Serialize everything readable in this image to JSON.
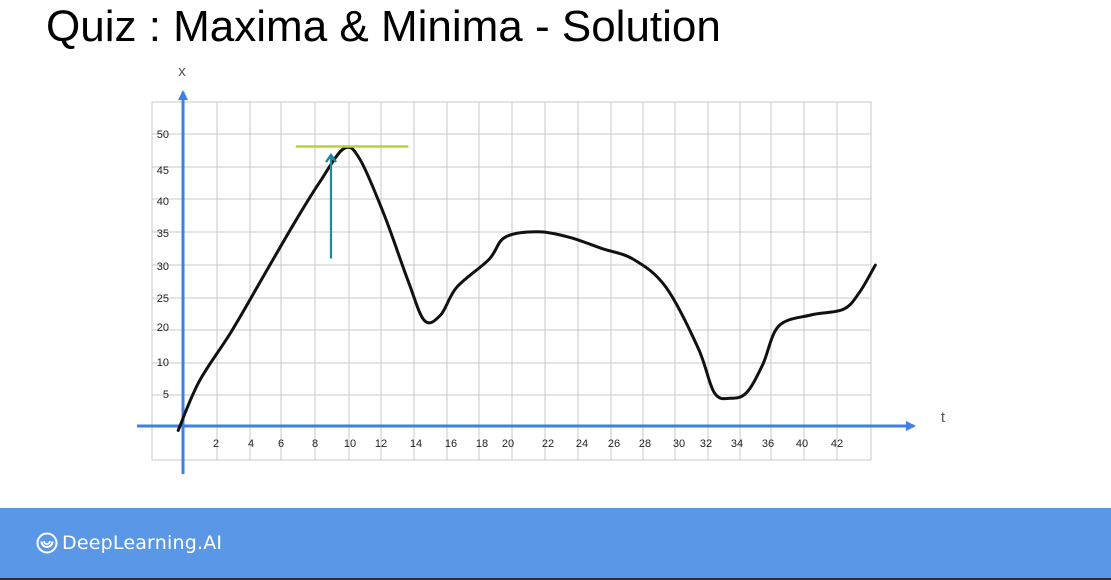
{
  "slide": {
    "title": "Quiz : Maxima & Minima - Solution"
  },
  "footer": {
    "brand": "DeepLearning.AI",
    "background": "#5a97e6"
  },
  "colors": {
    "axis": "#3f7fe6",
    "curve": "#111111",
    "grid": "#c8c8c8",
    "max_line": "#b6d334",
    "arrow": "#1b8a99"
  },
  "chart_data": {
    "type": "line",
    "xlabel": "t",
    "ylabel": "x",
    "x_ticks": [
      "2",
      "4",
      "6",
      "8",
      "10",
      "12",
      "14",
      "16",
      "18",
      "20",
      "22",
      "24",
      "26",
      "28",
      "30",
      "32",
      "34",
      "36",
      "40",
      "42"
    ],
    "y_ticks": [
      "5",
      "10",
      "20",
      "25",
      "30",
      "35",
      "40",
      "45",
      "50"
    ],
    "grid": true,
    "series": [
      {
        "points": [
          [
            -0.3,
            -0.8
          ],
          [
            1,
            8
          ],
          [
            3,
            17
          ],
          [
            5,
            27
          ],
          [
            7,
            37
          ],
          [
            8.5,
            44
          ],
          [
            10,
            50
          ],
          [
            11,
            48
          ],
          [
            12.5,
            38
          ],
          [
            14,
            26
          ],
          [
            15,
            19
          ],
          [
            16,
            20
          ],
          [
            17,
            25
          ],
          [
            19,
            30
          ],
          [
            20,
            34
          ],
          [
            22,
            35
          ],
          [
            24,
            34
          ],
          [
            26,
            32
          ],
          [
            28,
            30
          ],
          [
            30,
            25
          ],
          [
            32,
            14
          ],
          [
            33,
            6
          ],
          [
            34,
            5
          ],
          [
            35,
            6
          ],
          [
            36,
            11
          ],
          [
            37,
            18
          ],
          [
            39,
            20
          ],
          [
            41,
            21
          ],
          [
            42,
            24
          ],
          [
            43,
            29
          ]
        ]
      }
    ],
    "annotations": [
      {
        "type": "horizontal-tangent",
        "x_from": 7,
        "x_to": 14,
        "y": 50
      },
      {
        "type": "arrow",
        "x": 10,
        "y_from": 30,
        "y_to": 49
      }
    ]
  }
}
